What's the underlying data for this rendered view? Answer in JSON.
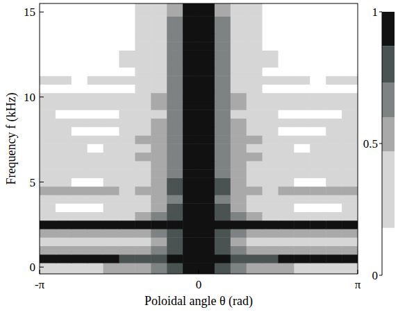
{
  "chart_data": {
    "type": "heatmap",
    "x_label": "Poloidal angle θ (rad)",
    "y_label": "Frequency f (kHz)",
    "xlim": [
      -3.1416,
      3.1416
    ],
    "xticks": [
      {
        "value": -3.1416,
        "label": "-π"
      },
      0,
      {
        "value": 3.1416,
        "label": "π"
      }
    ],
    "ylim": [
      -0.4,
      15.5
    ],
    "yticks": [
      0,
      5,
      10,
      15
    ],
    "x_edges": [
      -3.1416,
      -2.8274,
      -2.5133,
      -2.1991,
      -1.885,
      -1.5708,
      -1.2566,
      -0.9425,
      -0.6283,
      -0.3142,
      0,
      0.3142,
      0.6283,
      0.9425,
      1.2566,
      1.5708,
      1.885,
      2.1991,
      2.5133,
      2.8274,
      3.1416
    ],
    "y_edges": [
      -0.4,
      0.25,
      0.75,
      1.25,
      1.75,
      2.25,
      2.75,
      3.25,
      3.75,
      4.25,
      4.75,
      5.25,
      5.75,
      6.25,
      6.75,
      7.25,
      7.75,
      8.25,
      8.75,
      9.25,
      9.75,
      10.25,
      10.75,
      11.25,
      11.75,
      12.25,
      12.75,
      13.25,
      13.75,
      14.25,
      14.75,
      15.5
    ],
    "values": [
      [
        0.45,
        0.45,
        0.45,
        0.45,
        0.5,
        0.5,
        0.55,
        0.65,
        0.8,
        1,
        1,
        0.8,
        0.65,
        0.55,
        0.5,
        0.5,
        0.45,
        0.45,
        0.45,
        0.45
      ],
      [
        0.88,
        0.88,
        0.88,
        0.88,
        0.88,
        0.85,
        0.8,
        0.85,
        0.95,
        1,
        1,
        0.95,
        0.85,
        0.8,
        0.85,
        0.88,
        0.88,
        0.88,
        0.88,
        0.88
      ],
      [
        0.5,
        0.55,
        0.5,
        0.5,
        0.5,
        0.5,
        0.55,
        0.6,
        0.8,
        1,
        1,
        0.8,
        0.6,
        0.55,
        0.5,
        0.5,
        0.5,
        0.5,
        0.55,
        0.5
      ],
      [
        0.4,
        0.3,
        0.35,
        0.4,
        0.35,
        0.4,
        0.45,
        0.55,
        0.75,
        1,
        1,
        0.75,
        0.55,
        0.45,
        0.4,
        0.35,
        0.4,
        0.35,
        0.3,
        0.4
      ],
      [
        0.5,
        0.5,
        0.5,
        0.5,
        0.5,
        0.5,
        0.55,
        0.6,
        0.75,
        1,
        1,
        0.75,
        0.6,
        0.55,
        0.5,
        0.5,
        0.5,
        0.5,
        0.5,
        0.5
      ],
      [
        0.9,
        0.9,
        0.9,
        0.9,
        0.9,
        0.9,
        0.9,
        0.9,
        0.95,
        1,
        1,
        0.95,
        0.9,
        0.9,
        0.9,
        0.9,
        0.9,
        0.9,
        0.9,
        0.9
      ],
      [
        0.4,
        0.4,
        0.45,
        0.45,
        0.4,
        0.45,
        0.5,
        0.6,
        0.8,
        1,
        1,
        0.8,
        0.6,
        0.5,
        0.45,
        0.4,
        0.45,
        0.45,
        0.4,
        0.4
      ],
      [
        0.2,
        0.15,
        0.1,
        0.15,
        0.2,
        0.25,
        0.35,
        0.5,
        0.75,
        1,
        1,
        0.75,
        0.5,
        0.35,
        0.25,
        0.2,
        0.15,
        0.1,
        0.15,
        0.2
      ],
      [
        0.3,
        0.3,
        0.35,
        0.3,
        0.3,
        0.35,
        0.4,
        0.5,
        0.7,
        1,
        1,
        0.7,
        0.5,
        0.4,
        0.35,
        0.3,
        0.3,
        0.35,
        0.3,
        0.3
      ],
      [
        0.5,
        0.5,
        0.5,
        0.5,
        0.5,
        0.45,
        0.5,
        0.55,
        0.75,
        1,
        1,
        0.75,
        0.55,
        0.5,
        0.45,
        0.5,
        0.5,
        0.5,
        0.5,
        0.5
      ],
      [
        0.3,
        0.2,
        0.15,
        0.1,
        0.2,
        0.25,
        0.3,
        0.5,
        0.75,
        1,
        1,
        0.75,
        0.5,
        0.3,
        0.25,
        0.2,
        0.1,
        0.15,
        0.2,
        0.3
      ],
      [
        0.4,
        0.35,
        0.3,
        0.3,
        0.35,
        0.4,
        0.45,
        0.5,
        0.7,
        1,
        1,
        0.7,
        0.5,
        0.45,
        0.4,
        0.35,
        0.3,
        0.3,
        0.35,
        0.4
      ],
      [
        0.3,
        0.3,
        0.2,
        0.2,
        0.25,
        0.3,
        0.35,
        0.5,
        0.7,
        1,
        1,
        0.7,
        0.5,
        0.35,
        0.3,
        0.25,
        0.2,
        0.2,
        0.3,
        0.3
      ],
      [
        0.4,
        0.35,
        0.4,
        0.45,
        0.4,
        0.4,
        0.5,
        0.55,
        0.7,
        1,
        1,
        0.7,
        0.55,
        0.5,
        0.4,
        0.4,
        0.45,
        0.4,
        0.35,
        0.4
      ],
      [
        0.3,
        0.3,
        0.2,
        0.15,
        0.2,
        0.3,
        0.4,
        0.5,
        0.65,
        1,
        1,
        0.65,
        0.5,
        0.4,
        0.3,
        0.2,
        0.15,
        0.2,
        0.3,
        0.3
      ],
      [
        0.35,
        0.4,
        0.35,
        0.3,
        0.4,
        0.45,
        0.5,
        0.5,
        0.65,
        1,
        1,
        0.65,
        0.5,
        0.5,
        0.45,
        0.4,
        0.3,
        0.35,
        0.4,
        0.35
      ],
      [
        0.2,
        0.2,
        0.15,
        0.1,
        0.15,
        0.2,
        0.3,
        0.5,
        0.65,
        1,
        1,
        0.65,
        0.5,
        0.3,
        0.2,
        0.15,
        0.1,
        0.15,
        0.2,
        0.2
      ],
      [
        0.3,
        0.35,
        0.3,
        0.25,
        0.3,
        0.35,
        0.4,
        0.5,
        0.65,
        1,
        1,
        0.65,
        0.5,
        0.4,
        0.35,
        0.3,
        0.25,
        0.3,
        0.35,
        0.3
      ],
      [
        0.2,
        0.15,
        0.1,
        0.1,
        0.1,
        0.2,
        0.3,
        0.45,
        0.6,
        1,
        1,
        0.6,
        0.45,
        0.3,
        0.2,
        0.1,
        0.1,
        0.1,
        0.15,
        0.2
      ],
      [
        0.3,
        0.3,
        0.3,
        0.3,
        0.3,
        0.35,
        0.45,
        0.5,
        0.65,
        1,
        1,
        0.65,
        0.5,
        0.45,
        0.35,
        0.3,
        0.3,
        0.3,
        0.3,
        0.3
      ],
      [
        0.35,
        0.35,
        0.3,
        0.3,
        0.35,
        0.4,
        0.45,
        0.5,
        0.65,
        1,
        1,
        0.65,
        0.5,
        0.45,
        0.4,
        0.35,
        0.3,
        0.3,
        0.35,
        0.35
      ],
      [
        0.1,
        0.1,
        0.1,
        0.1,
        0.1,
        0.15,
        0.25,
        0.45,
        0.6,
        1,
        1,
        0.6,
        0.45,
        0.25,
        0.15,
        0.1,
        0.1,
        0.1,
        0.1,
        0.1
      ],
      [
        0.2,
        0.2,
        0.15,
        0.2,
        0.2,
        0.25,
        0.35,
        0.45,
        0.6,
        1,
        1,
        0.6,
        0.45,
        0.35,
        0.25,
        0.2,
        0.2,
        0.15,
        0.2,
        0.2
      ],
      [
        0.1,
        0.1,
        0.05,
        0.1,
        0.1,
        0.15,
        0.3,
        0.45,
        0.6,
        1,
        1,
        0.6,
        0.45,
        0.3,
        0.15,
        0.1,
        0.1,
        0.05,
        0.1,
        0.1
      ],
      [
        0.1,
        0.05,
        0.05,
        0.1,
        0.1,
        0.2,
        0.3,
        0.45,
        0.6,
        1,
        1,
        0.6,
        0.45,
        0.3,
        0.2,
        0.1,
        0.1,
        0.05,
        0.05,
        0.1
      ],
      [
        0.05,
        0.05,
        0.1,
        0.1,
        0.15,
        0.2,
        0.25,
        0.45,
        0.6,
        1,
        1,
        0.6,
        0.45,
        0.25,
        0.2,
        0.15,
        0.1,
        0.1,
        0.05,
        0.05
      ],
      [
        0.1,
        0.05,
        0.05,
        0.05,
        0.1,
        0.15,
        0.25,
        0.4,
        0.6,
        1,
        1,
        0.6,
        0.4,
        0.25,
        0.15,
        0.1,
        0.05,
        0.05,
        0.05,
        0.1
      ],
      [
        0.05,
        0.05,
        0.05,
        0.1,
        0.1,
        0.1,
        0.2,
        0.4,
        0.6,
        1,
        1,
        0.6,
        0.4,
        0.2,
        0.1,
        0.1,
        0.1,
        0.05,
        0.05,
        0.05
      ],
      [
        0.05,
        0.05,
        0.05,
        0.05,
        0.1,
        0.15,
        0.25,
        0.4,
        0.6,
        1,
        1,
        0.6,
        0.4,
        0.25,
        0.15,
        0.1,
        0.05,
        0.05,
        0.05,
        0.05
      ],
      [
        0.05,
        0.05,
        0.05,
        0.05,
        0.05,
        0.1,
        0.2,
        0.4,
        0.6,
        1,
        1,
        0.6,
        0.4,
        0.2,
        0.1,
        0.05,
        0.05,
        0.05,
        0.05,
        0.05
      ],
      [
        0.05,
        0.05,
        0.05,
        0.05,
        0.05,
        0.1,
        0.2,
        0.4,
        0.55,
        1,
        1,
        0.55,
        0.4,
        0.2,
        0.1,
        0.05,
        0.05,
        0.05,
        0.05,
        0.05
      ]
    ],
    "colorbar": {
      "range": [
        0,
        1
      ],
      "ticks": [
        0,
        0.5,
        1
      ],
      "levels": [
        0.18,
        0.47,
        0.6,
        0.73,
        0.87,
        1
      ],
      "colors": [
        "#d6d6d6",
        "#a9a9a9",
        "#7f8282",
        "#4b5252",
        "#111111"
      ]
    }
  }
}
